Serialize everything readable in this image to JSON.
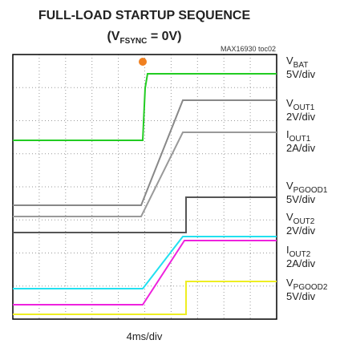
{
  "header": {
    "title": "FULL-LOAD STARTUP SEQUENCE",
    "subtitle_open": "(V",
    "subtitle_sub": "FSYNC",
    "subtitle_close": " = 0V)",
    "part": "MAX16930 toc02"
  },
  "labels": [
    {
      "main": "V",
      "sub": "BAT",
      "scale": "5V/div"
    },
    {
      "main": "V",
      "sub": "OUT1",
      "scale": "2V/div"
    },
    {
      "main": "I",
      "sub": "OUT1",
      "scale": "2A/div"
    },
    {
      "main": "V",
      "sub": "PGOOD1",
      "scale": "5V/div"
    },
    {
      "main": "V",
      "sub": "OUT2",
      "scale": "2V/div"
    },
    {
      "main": "I",
      "sub": "OUT2",
      "scale": "2A/div"
    },
    {
      "main": "V",
      "sub": "PGOOD2",
      "scale": "5V/div"
    }
  ],
  "x_label": "4ms/div"
}
